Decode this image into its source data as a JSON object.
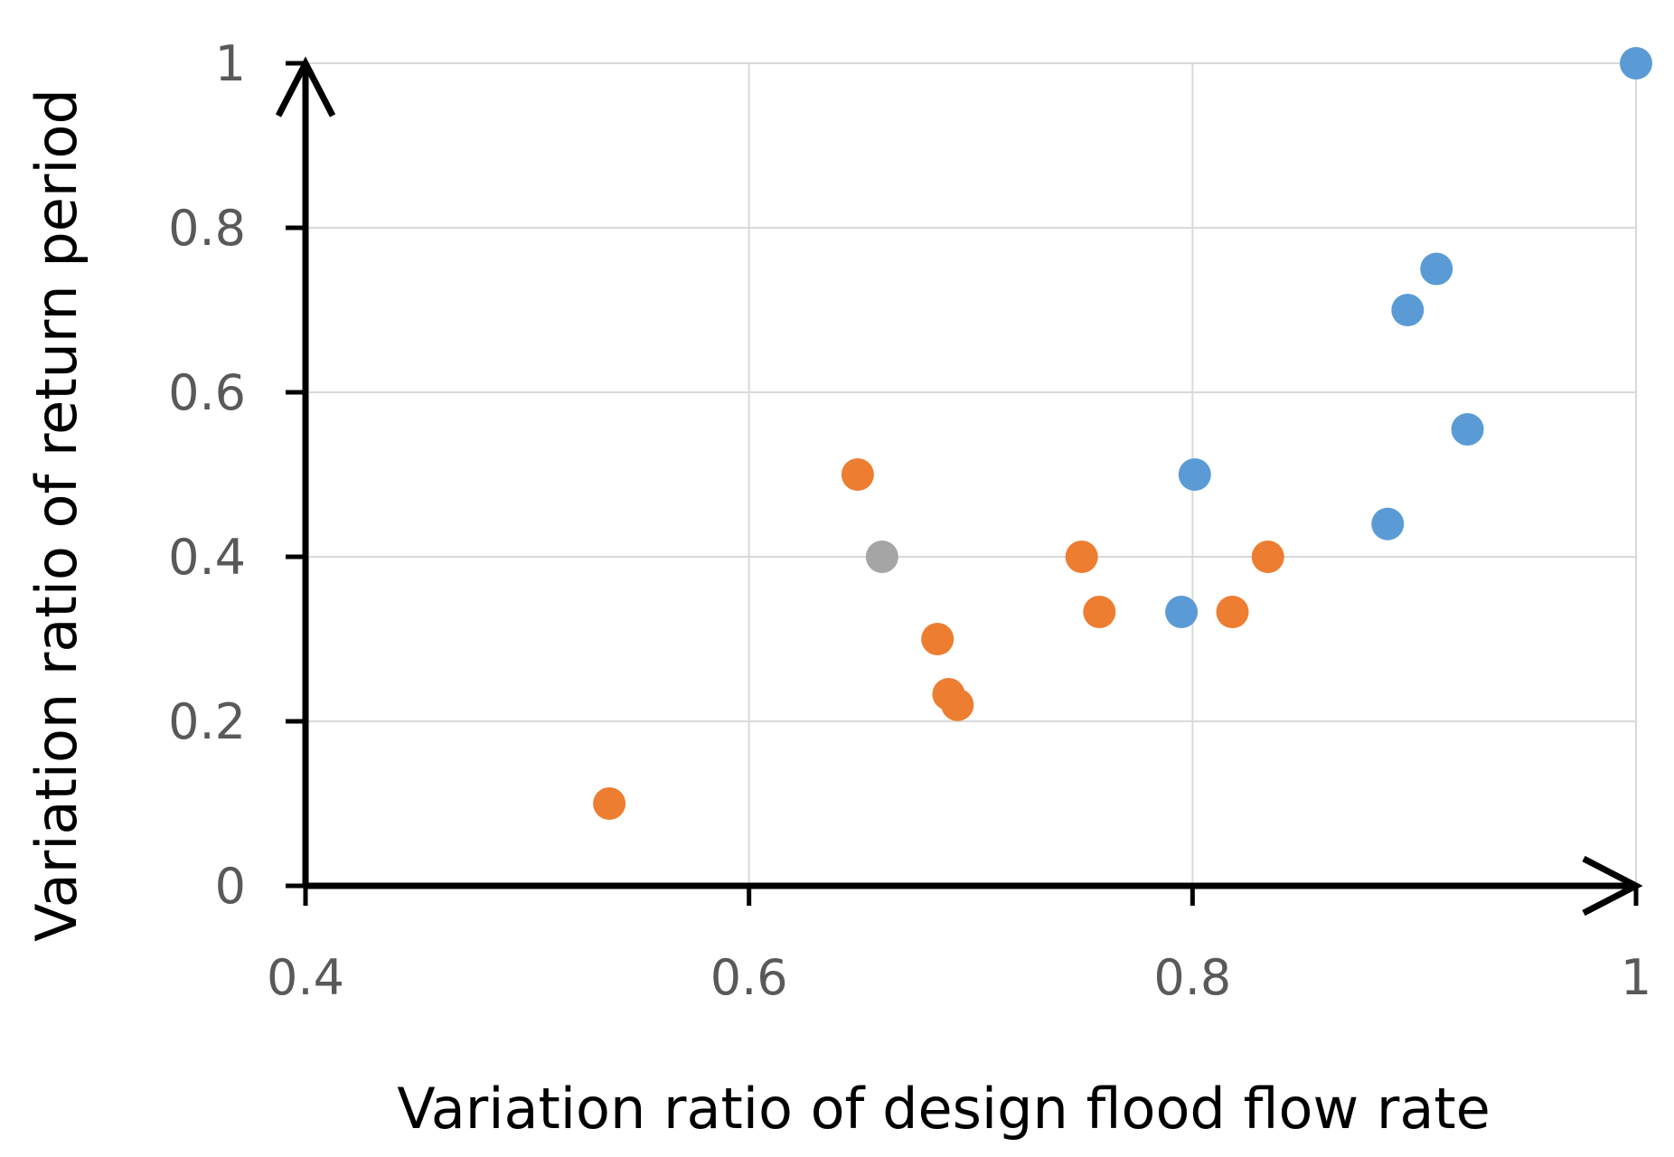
{
  "chart_data": {
    "type": "scatter",
    "title": "",
    "xlabel": "Variation ratio of design flood flow rate",
    "ylabel": "Variation ratio of return period",
    "xlim": [
      0.4,
      1.0
    ],
    "ylim": [
      0.0,
      1.0
    ],
    "x_ticks": [
      0.4,
      0.6,
      0.8,
      1.0
    ],
    "x_tick_labels": [
      "0.4",
      "0.6",
      "0.8",
      "1"
    ],
    "y_ticks": [
      0.0,
      0.2,
      0.4,
      0.6,
      0.8,
      1.0
    ],
    "y_tick_labels": [
      "0",
      "0.2",
      "0.4",
      "0.6",
      "0.8",
      "1"
    ],
    "grid": true,
    "legend": "none",
    "series": [
      {
        "name": "blue",
        "color": "#5b9bd5",
        "points": [
          {
            "x": 1.0,
            "y": 1.0
          },
          {
            "x": 0.91,
            "y": 0.75
          },
          {
            "x": 0.897,
            "y": 0.7
          },
          {
            "x": 0.924,
            "y": 0.555
          },
          {
            "x": 0.801,
            "y": 0.5
          },
          {
            "x": 0.888,
            "y": 0.44
          },
          {
            "x": 0.795,
            "y": 0.333
          }
        ]
      },
      {
        "name": "orange",
        "color": "#ed7d31",
        "points": [
          {
            "x": 0.649,
            "y": 0.5
          },
          {
            "x": 0.75,
            "y": 0.4
          },
          {
            "x": 0.834,
            "y": 0.4
          },
          {
            "x": 0.758,
            "y": 0.333
          },
          {
            "x": 0.818,
            "y": 0.333
          },
          {
            "x": 0.685,
            "y": 0.3
          },
          {
            "x": 0.69,
            "y": 0.233
          },
          {
            "x": 0.694,
            "y": 0.22
          },
          {
            "x": 0.537,
            "y": 0.1
          }
        ]
      },
      {
        "name": "gray",
        "color": "#a5a5a5",
        "points": [
          {
            "x": 0.66,
            "y": 0.4
          }
        ]
      }
    ]
  }
}
